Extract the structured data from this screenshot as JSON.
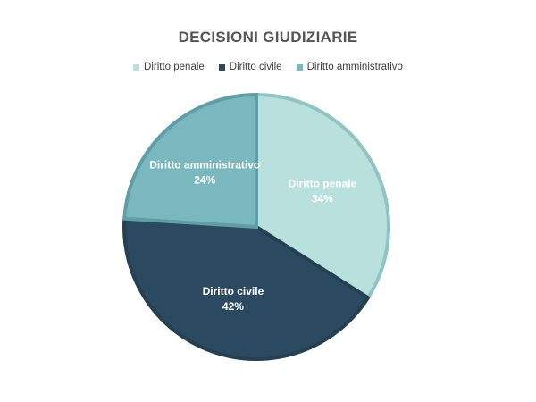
{
  "chart_data": {
    "type": "pie",
    "title": "DECISIONI GIUDIZIARIE",
    "legend_position": "top",
    "slices": [
      {
        "label": "Diritto penale",
        "value": 34,
        "value_label": "34%",
        "color": "#b8e0dd",
        "edge": "#8fc4c0"
      },
      {
        "label": "Diritto civile",
        "value": 42,
        "value_label": "42%",
        "color": "#2b4a5f",
        "edge": "#244051"
      },
      {
        "label": "Diritto amministrativo",
        "value": 24,
        "value_label": "24%",
        "color": "#7ab8bf",
        "edge": "#5f9ea6"
      }
    ]
  }
}
